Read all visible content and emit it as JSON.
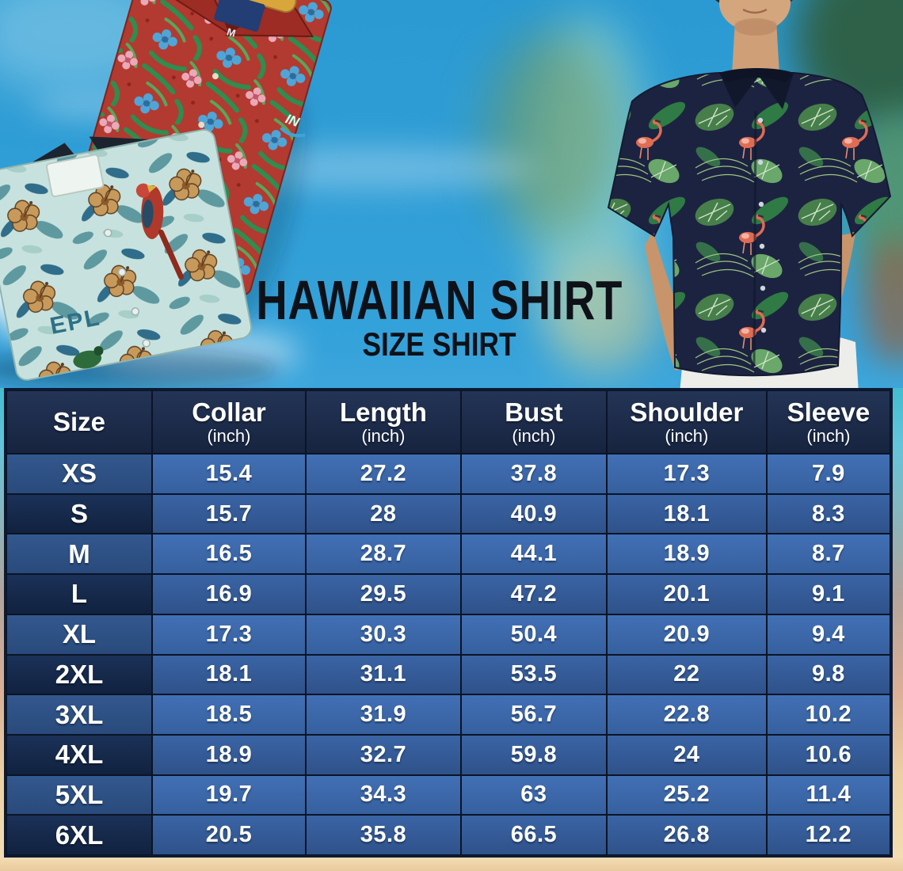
{
  "poster": {
    "title": "HAWAIIAN SHIRT",
    "subtitle": "SIZE SHIRT"
  },
  "photo_texts": {
    "teal_shirt_print": "EPL",
    "red_shirt_sleeve_print": "IN",
    "red_shirt_size_tag": "M"
  },
  "chart_data": {
    "type": "table",
    "title": "Hawaiian Shirt Size Shirt",
    "columns": [
      "Size",
      "Collar (inch)",
      "Length (inch)",
      "Bust (inch)",
      "Shoulder (inch)",
      "Sleeve (inch)"
    ],
    "header": [
      {
        "label": "Size",
        "sub": ""
      },
      {
        "label": "Collar",
        "sub": "(inch)"
      },
      {
        "label": "Length",
        "sub": "(inch)"
      },
      {
        "label": "Bust",
        "sub": "(inch)"
      },
      {
        "label": "Shoulder",
        "sub": "(inch)"
      },
      {
        "label": "Sleeve",
        "sub": "(inch)"
      }
    ],
    "rows": [
      [
        "XS",
        "15.4",
        "27.2",
        "37.8",
        "17.3",
        "7.9"
      ],
      [
        "S",
        "15.7",
        "28",
        "40.9",
        "18.1",
        "8.3"
      ],
      [
        "M",
        "16.5",
        "28.7",
        "44.1",
        "18.9",
        "8.7"
      ],
      [
        "L",
        "16.9",
        "29.5",
        "47.2",
        "20.1",
        "9.1"
      ],
      [
        "XL",
        "17.3",
        "30.3",
        "50.4",
        "20.9",
        "9.4"
      ],
      [
        "2XL",
        "18.1",
        "31.1",
        "53.5",
        "22",
        "9.8"
      ],
      [
        "3XL",
        "18.5",
        "31.9",
        "56.7",
        "22.8",
        "10.2"
      ],
      [
        "4XL",
        "18.9",
        "32.7",
        "59.8",
        "24",
        "10.6"
      ],
      [
        "5XL",
        "19.7",
        "34.3",
        "63",
        "25.2",
        "11.4"
      ],
      [
        "6XL",
        "20.5",
        "35.8",
        "66.5",
        "26.8",
        "12.2"
      ]
    ]
  },
  "colors": {
    "sky_blue": "#2b9ad2",
    "table_header_navy": "#1b2a47",
    "row_light_blue": "#3d69b0",
    "row_dark_blue": "#32578f",
    "size_cell_light": "#2d5083",
    "size_cell_dark": "#13254a",
    "table_border": "#0a1426",
    "sand": "#eed2a7",
    "title_text": "#0e1117",
    "text_white": "#ffffff"
  }
}
